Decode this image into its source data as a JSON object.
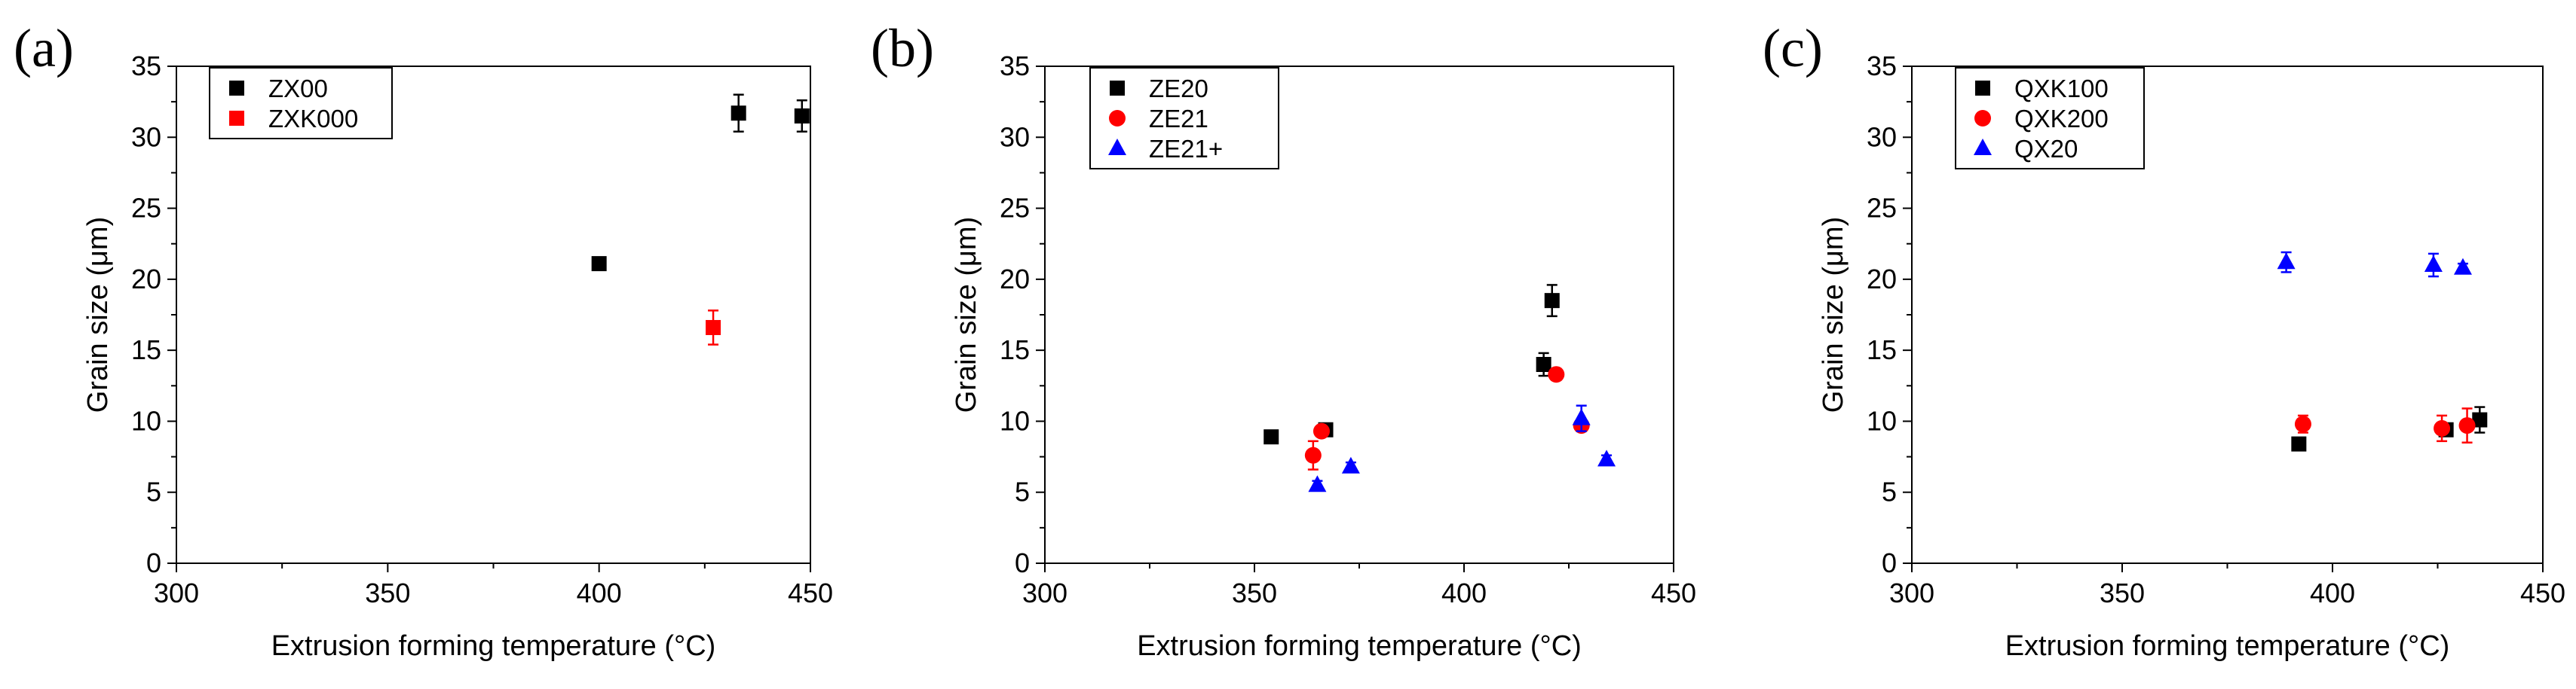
{
  "chart_data": [
    {
      "type": "scatter",
      "panel_label": "(a)",
      "xlabel": "Extrusion forming temperature (°C)",
      "ylabel": "Grain size (μm)",
      "xlim": [
        300,
        450
      ],
      "ylim": [
        0,
        35
      ],
      "x_ticks": [
        300,
        350,
        400,
        450
      ],
      "y_ticks": [
        0,
        5,
        10,
        15,
        20,
        25,
        30,
        35
      ],
      "legend_position": "top-left",
      "series": [
        {
          "name": "ZX00",
          "color": "#000000",
          "marker": "square",
          "points": [
            {
              "x": 400,
              "y": 21.1,
              "err": 0.4
            },
            {
              "x": 433,
              "y": 31.7,
              "err": 1.3
            },
            {
              "x": 448,
              "y": 31.5,
              "err": 1.1
            }
          ]
        },
        {
          "name": "ZXK000",
          "color": "#ff0000",
          "marker": "square",
          "points": [
            {
              "x": 427,
              "y": 16.6,
              "err": 1.2
            }
          ]
        }
      ]
    },
    {
      "type": "scatter",
      "panel_label": "(b)",
      "xlabel": "Extrusion forming temperature (°C)",
      "ylabel": "Grain size (μm)",
      "xlim": [
        300,
        450
      ],
      "ylim": [
        0,
        35
      ],
      "x_ticks": [
        300,
        350,
        400,
        450
      ],
      "y_ticks": [
        0,
        5,
        10,
        15,
        20,
        25,
        30,
        35
      ],
      "legend_position": "top-left",
      "series": [
        {
          "name": "ZE20",
          "color": "#000000",
          "marker": "square",
          "points": [
            {
              "x": 354,
              "y": 8.9,
              "err": 0.2
            },
            {
              "x": 367,
              "y": 9.4,
              "err": 0.3
            },
            {
              "x": 419,
              "y": 14.0,
              "err": 0.8
            },
            {
              "x": 421,
              "y": 18.5,
              "err": 1.1
            }
          ]
        },
        {
          "name": "ZE21",
          "color": "#ff0000",
          "marker": "circle",
          "points": [
            {
              "x": 364,
              "y": 7.6,
              "err": 1.0
            },
            {
              "x": 366,
              "y": 9.3,
              "err": 0.3
            },
            {
              "x": 422,
              "y": 13.3,
              "err": 0.4
            },
            {
              "x": 428,
              "y": 9.7,
              "err": 0.3
            }
          ]
        },
        {
          "name": "ZE21+",
          "color": "#0000ff",
          "marker": "triangle",
          "points": [
            {
              "x": 365,
              "y": 5.5,
              "err": 0.3
            },
            {
              "x": 373,
              "y": 6.8,
              "err": 0.3
            },
            {
              "x": 428,
              "y": 10.2,
              "err": 0.9
            },
            {
              "x": 434,
              "y": 7.3,
              "err": 0.3
            }
          ]
        }
      ]
    },
    {
      "type": "scatter",
      "panel_label": "(c)",
      "xlabel": "Extrusion forming temperature (°C)",
      "ylabel": "Grain size (μm)",
      "xlim": [
        300,
        450
      ],
      "ylim": [
        0,
        35
      ],
      "x_ticks": [
        300,
        350,
        400,
        450
      ],
      "y_ticks": [
        0,
        5,
        10,
        15,
        20,
        25,
        30,
        35
      ],
      "legend_position": "top-left",
      "series": [
        {
          "name": "QXK100",
          "color": "#000000",
          "marker": "square",
          "points": [
            {
              "x": 392,
              "y": 8.4,
              "err": 0.2
            },
            {
              "x": 427,
              "y": 9.4,
              "err": 0.3
            },
            {
              "x": 435,
              "y": 10.1,
              "err": 0.9
            }
          ]
        },
        {
          "name": "QXK200",
          "color": "#ff0000",
          "marker": "circle",
          "points": [
            {
              "x": 393,
              "y": 9.8,
              "err": 0.6
            },
            {
              "x": 426,
              "y": 9.5,
              "err": 0.9
            },
            {
              "x": 432,
              "y": 9.7,
              "err": 1.2
            }
          ]
        },
        {
          "name": "QX20",
          "color": "#0000ff",
          "marker": "triangle",
          "points": [
            {
              "x": 389,
              "y": 21.2,
              "err": 0.7
            },
            {
              "x": 424,
              "y": 21.0,
              "err": 0.8
            },
            {
              "x": 431,
              "y": 20.8,
              "err": 0.3
            }
          ]
        }
      ]
    }
  ]
}
